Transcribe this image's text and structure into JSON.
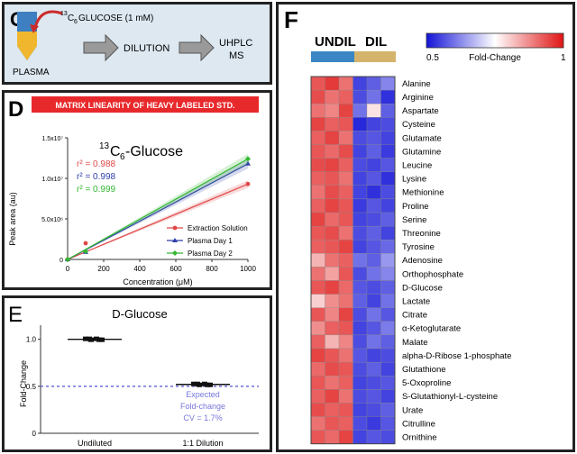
{
  "panels": {
    "c": {
      "letter": "C",
      "tube_label": "PLASMA",
      "reagent": "GLUCOSE (1 mM)",
      "reagent_sup": "13",
      "reagent_sub": "6",
      "reagent_c": "C",
      "step2": "DILUTION",
      "step3_line1": "UHPLC",
      "step3_line2": "MS",
      "colors": {
        "background": "#dde8f1",
        "arrow": "#cc2b2b",
        "tube_top": "#3d7fc0",
        "tube_bottom": "#f0b72e"
      }
    },
    "d": {
      "letter": "D",
      "banner": "MATRIX LINEARITY OF HEAVY LABELED STD.",
      "banner_color": "#e8292b"
    },
    "e": {
      "letter": "E"
    },
    "f": {
      "letter": "F",
      "group_undil": "UNDIL",
      "group_dil": "DIL",
      "colorbar_min": "0.5",
      "colorbar_label": "Fold-Change",
      "colorbar_max": "1",
      "undil_bar_color": "#3a86c4",
      "dil_bar_color": "#d4b36b"
    }
  },
  "chart_data": [
    {
      "type": "scatter",
      "title_sup": "13",
      "title_c": "C",
      "title_sub": "6",
      "title": "-Glucose",
      "xlabel": "Concentration (μM)",
      "ylabel": "Peak area (au)",
      "xlim": [
        0,
        1000
      ],
      "ylim": [
        0,
        15000000
      ],
      "xticks": [
        0,
        200,
        400,
        600,
        800,
        1000
      ],
      "yticks": [
        {
          "value": 0,
          "label": "0"
        },
        {
          "value": 5000000,
          "label": "5.0x10⁶"
        },
        {
          "value": 10000000,
          "label": "1.0x10⁷"
        },
        {
          "value": 15000000,
          "label": "1.5x10⁷"
        }
      ],
      "legend_position": "bottom-right",
      "series": [
        {
          "name": "Extraction Solution",
          "color": "#e04848",
          "marker": "circle",
          "r2_label": "r² = 0.988",
          "x": [
            0,
            100,
            1000
          ],
          "y": [
            0,
            2000000,
            9300000
          ],
          "fit": [
            [
              0,
              0
            ],
            [
              1000,
              9300000
            ]
          ]
        },
        {
          "name": "Plasma Day 1",
          "color": "#2e3fa8",
          "marker": "triangle",
          "r2_label": "r² = 0.998",
          "x": [
            0,
            100,
            1000
          ],
          "y": [
            0,
            900000,
            11800000
          ],
          "fit": [
            [
              0,
              0
            ],
            [
              1000,
              11800000
            ]
          ]
        },
        {
          "name": "Plasma Day 2",
          "color": "#33b833",
          "marker": "diamond",
          "r2_label": "r² = 0.999",
          "x": [
            0,
            100,
            1000
          ],
          "y": [
            0,
            1000000,
            12400000
          ],
          "fit": [
            [
              0,
              0
            ],
            [
              1000,
              12400000
            ]
          ]
        }
      ]
    },
    {
      "type": "scatter",
      "title": "D-Glucose",
      "ylabel": "Fold-Change",
      "categories": [
        "Undiluted",
        "1:1 Dilution"
      ],
      "ylim": [
        0,
        1.15
      ],
      "yticks": [
        {
          "value": 0,
          "label": "0"
        },
        {
          "value": 0.5,
          "label": "0.5"
        },
        {
          "value": 1.0,
          "label": "1.0"
        }
      ],
      "means": [
        1.0,
        0.52
      ],
      "expected_value": 0.5,
      "annotation": [
        "Expected",
        "Fold-change",
        "CV = 1.7%"
      ],
      "expected_color": "#7777dd"
    },
    {
      "type": "heatmap",
      "rows": [
        "Alanine",
        "Arginine",
        "Aspartate",
        "Cysteine",
        "Glutamate",
        "Glutamine",
        "Leucine",
        "Lysine",
        "Methionine",
        "Proline",
        "Serine",
        "Threonine",
        "Tyrosine",
        "Adenosine",
        "Orthophosphate",
        "D-Glucose",
        "Lactate",
        "Citrate",
        "α-Ketoglutarate",
        "Malate",
        "alpha-D-Ribose 1-phosphate",
        "Glutathione",
        "5-Oxoproline",
        "S-Glutathionyl-L-cysteine",
        "Urate",
        "Citrulline",
        "Ornithine"
      ],
      "columns": [
        "UNDIL 1",
        "UNDIL 2",
        "UNDIL 3",
        "DIL 1",
        "DIL 2",
        "DIL 3"
      ],
      "value_range": [
        0.5,
        1
      ],
      "values": [
        [
          0.93,
          0.96,
          0.9,
          0.55,
          0.58,
          0.62
        ],
        [
          0.94,
          0.9,
          0.92,
          0.56,
          0.6,
          0.53
        ],
        [
          0.9,
          0.88,
          0.95,
          0.6,
          0.78,
          0.58
        ],
        [
          0.95,
          0.92,
          0.93,
          0.52,
          0.55,
          0.56
        ],
        [
          0.92,
          0.95,
          0.9,
          0.56,
          0.57,
          0.55
        ],
        [
          0.93,
          0.91,
          0.94,
          0.55,
          0.58,
          0.54
        ],
        [
          0.94,
          0.95,
          0.92,
          0.56,
          0.55,
          0.57
        ],
        [
          0.92,
          0.93,
          0.9,
          0.55,
          0.57,
          0.53
        ],
        [
          0.9,
          0.94,
          0.92,
          0.55,
          0.53,
          0.56
        ],
        [
          0.92,
          0.95,
          0.93,
          0.54,
          0.57,
          0.55
        ],
        [
          0.95,
          0.91,
          0.93,
          0.55,
          0.56,
          0.58
        ],
        [
          0.93,
          0.94,
          0.9,
          0.56,
          0.58,
          0.55
        ],
        [
          0.92,
          0.93,
          0.95,
          0.55,
          0.57,
          0.59
        ],
        [
          0.83,
          0.9,
          0.92,
          0.6,
          0.58,
          0.64
        ],
        [
          0.9,
          0.85,
          0.93,
          0.56,
          0.6,
          0.62
        ],
        [
          0.93,
          0.95,
          0.91,
          0.57,
          0.56,
          0.58
        ],
        [
          0.8,
          0.87,
          0.9,
          0.58,
          0.55,
          0.6
        ],
        [
          0.93,
          0.88,
          0.95,
          0.56,
          0.6,
          0.57
        ],
        [
          0.87,
          0.92,
          0.93,
          0.55,
          0.57,
          0.61
        ],
        [
          0.92,
          0.83,
          0.88,
          0.56,
          0.6,
          0.58
        ],
        [
          0.95,
          0.93,
          0.9,
          0.57,
          0.55,
          0.56
        ],
        [
          0.91,
          0.94,
          0.93,
          0.56,
          0.58,
          0.55
        ],
        [
          0.93,
          0.9,
          0.92,
          0.55,
          0.56,
          0.57
        ],
        [
          0.92,
          0.95,
          0.9,
          0.56,
          0.57,
          0.55
        ],
        [
          0.94,
          0.92,
          0.93,
          0.55,
          0.56,
          0.58
        ],
        [
          0.9,
          0.93,
          0.92,
          0.56,
          0.54,
          0.57
        ],
        [
          0.93,
          0.91,
          0.95,
          0.55,
          0.57,
          0.56
        ]
      ]
    }
  ]
}
